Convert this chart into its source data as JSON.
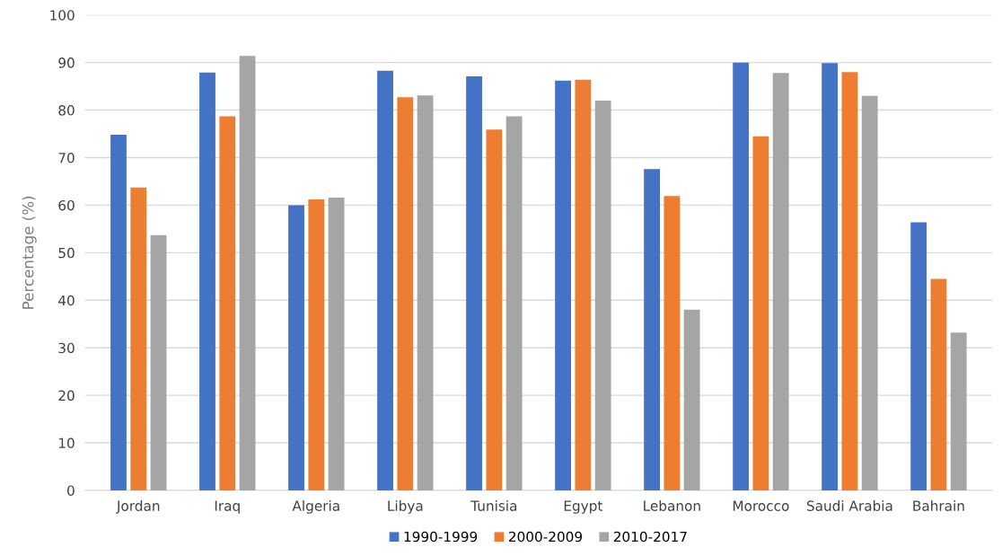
{
  "chart_data": {
    "type": "bar",
    "ylabel": "Percentage (%)",
    "categories": [
      "Jordan",
      "Iraq",
      "Algeria",
      "Libya",
      "Tunisia",
      "Egypt",
      "Lebanon",
      "Morocco",
      "Saudi Arabia",
      "Bahrain"
    ],
    "series": [
      {
        "name": "1990-1999",
        "color": "#4472c4",
        "values": [
          74.8,
          87.9,
          60.0,
          88.3,
          87.1,
          86.2,
          67.6,
          90.0,
          89.9,
          56.4
        ]
      },
      {
        "name": "2000-2009",
        "color": "#ed7d31",
        "values": [
          63.7,
          78.7,
          61.2,
          82.7,
          75.9,
          86.4,
          61.9,
          74.5,
          88.0,
          44.5
        ]
      },
      {
        "name": "2010-2017",
        "color": "#a5a5a5",
        "values": [
          53.7,
          91.4,
          61.6,
          83.1,
          78.7,
          82.0,
          38.0,
          87.8,
          83.0,
          33.2
        ]
      }
    ],
    "ylim": [
      0,
      100
    ],
    "yticks": [
      0,
      10,
      20,
      30,
      40,
      50,
      60,
      70,
      80,
      90,
      100
    ],
    "grid": "y",
    "legend": "bottom"
  }
}
